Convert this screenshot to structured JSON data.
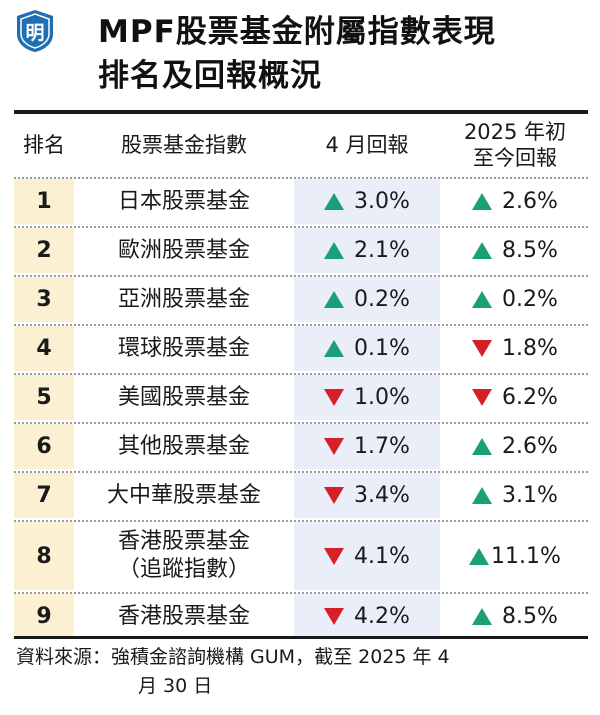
{
  "logo": {
    "char": "明",
    "color": "#1f6fb2"
  },
  "title": {
    "line1": "MPF股票基金附屬指數表現",
    "line2": "排名及回報概況"
  },
  "table": {
    "headers": {
      "rank": "排名",
      "name": "股票基金指數",
      "april": "4 月回報",
      "ytd_line1": "2025 年初",
      "ytd_line2": "至今回報"
    },
    "rows": [
      {
        "rank": "1",
        "name": "日本股票基金",
        "name2": "",
        "april": "3.0%",
        "april_dir": "up",
        "ytd": "2.6%",
        "ytd_dir": "up"
      },
      {
        "rank": "2",
        "name": "歐洲股票基金",
        "name2": "",
        "april": "2.1%",
        "april_dir": "up",
        "ytd": "8.5%",
        "ytd_dir": "up"
      },
      {
        "rank": "3",
        "name": "亞洲股票基金",
        "name2": "",
        "april": "0.2%",
        "april_dir": "up",
        "ytd": "0.2%",
        "ytd_dir": "up"
      },
      {
        "rank": "4",
        "name": "環球股票基金",
        "name2": "",
        "april": "0.1%",
        "april_dir": "up",
        "ytd": "1.8%",
        "ytd_dir": "down"
      },
      {
        "rank": "5",
        "name": "美國股票基金",
        "name2": "",
        "april": "1.0%",
        "april_dir": "down",
        "ytd": "6.2%",
        "ytd_dir": "down"
      },
      {
        "rank": "6",
        "name": "其他股票基金",
        "name2": "",
        "april": "1.7%",
        "april_dir": "down",
        "ytd": "2.6%",
        "ytd_dir": "up"
      },
      {
        "rank": "7",
        "name": "大中華股票基金",
        "name2": "",
        "april": "3.4%",
        "april_dir": "down",
        "ytd": "3.1%",
        "ytd_dir": "up"
      },
      {
        "rank": "8",
        "name": "香港股票基金",
        "name2": "（追蹤指數）",
        "april": "4.1%",
        "april_dir": "down",
        "ytd": "11.1%",
        "ytd_dir": "up"
      },
      {
        "rank": "9",
        "name": "香港股票基金",
        "name2": "",
        "april": "4.2%",
        "april_dir": "down",
        "ytd": "8.5%",
        "ytd_dir": "up"
      }
    ]
  },
  "source": {
    "line1": "資料來源：強積金諮詢機構 GUM，截至 2025 年 4",
    "line2": "月 30 日"
  },
  "colors": {
    "up": "#1aa079",
    "down": "#d61f26",
    "rank_bg": "#fbf0d2",
    "april_bg": "#e9eef8"
  }
}
